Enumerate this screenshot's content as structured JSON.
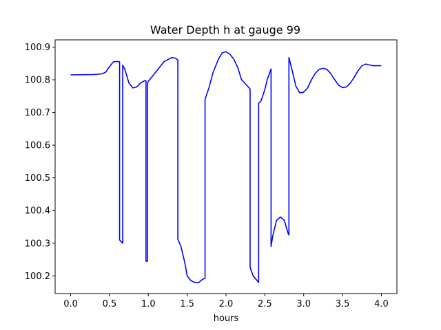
{
  "chart_data": {
    "type": "line",
    "title": "Water Depth h at gauge 99",
    "xlabel": "hours",
    "ylabel": "",
    "xlim": [
      -0.2,
      4.2
    ],
    "ylim": [
      100.146,
      100.922
    ],
    "xticks": [
      0.0,
      0.5,
      1.0,
      1.5,
      2.0,
      2.5,
      3.0,
      3.5,
      4.0
    ],
    "xtick_labels": [
      "0.0",
      "0.5",
      "1.0",
      "1.5",
      "2.0",
      "2.5",
      "3.0",
      "3.5",
      "4.0"
    ],
    "yticks": [
      100.2,
      100.3,
      100.4,
      100.5,
      100.6,
      100.7,
      100.8,
      100.9
    ],
    "ytick_labels": [
      "100.2",
      "100.3",
      "100.4",
      "100.5",
      "100.6",
      "100.7",
      "100.8",
      "100.9"
    ],
    "grid": false,
    "series": [
      {
        "color": "#0000ff",
        "x": [
          0.0,
          0.3,
          0.4,
          0.45,
          0.5,
          0.55,
          0.6,
          0.63,
          0.63,
          0.67,
          0.67,
          0.7,
          0.75,
          0.8,
          0.85,
          0.9,
          0.95,
          0.97,
          0.97,
          0.99,
          0.99,
          1.0,
          1.1,
          1.2,
          1.3,
          1.35,
          1.38,
          1.38,
          1.42,
          1.47,
          1.5,
          1.55,
          1.6,
          1.65,
          1.7,
          1.73,
          1.73,
          1.78,
          1.83,
          1.9,
          1.95,
          2.0,
          2.05,
          2.1,
          2.15,
          2.2,
          2.31,
          2.31,
          2.35,
          2.42,
          2.42,
          2.45,
          2.5,
          2.53,
          2.58,
          2.58,
          2.6,
          2.65,
          2.7,
          2.75,
          2.8,
          2.81,
          2.81,
          2.85,
          2.9,
          2.95,
          3.0,
          3.05,
          3.1,
          3.15,
          3.2,
          3.25,
          3.3,
          3.35,
          3.4,
          3.45,
          3.5,
          3.55,
          3.6,
          3.65,
          3.7,
          3.75,
          3.8,
          3.85,
          3.9,
          3.95,
          4.0
        ],
        "y": [
          100.815,
          100.816,
          100.818,
          100.823,
          100.84,
          100.855,
          100.856,
          100.855,
          100.31,
          100.3,
          100.845,
          100.83,
          100.79,
          100.775,
          100.778,
          100.79,
          100.797,
          100.797,
          100.245,
          100.245,
          100.79,
          100.795,
          100.825,
          100.855,
          100.868,
          100.866,
          100.86,
          100.312,
          100.29,
          100.24,
          100.2,
          100.185,
          100.18,
          100.18,
          100.19,
          100.192,
          100.74,
          100.775,
          100.82,
          100.862,
          100.882,
          100.886,
          100.878,
          100.863,
          100.838,
          100.8,
          100.772,
          100.226,
          100.2,
          100.18,
          100.728,
          100.735,
          100.77,
          100.8,
          100.833,
          100.29,
          100.32,
          100.37,
          100.38,
          100.37,
          100.33,
          100.325,
          100.868,
          100.83,
          100.78,
          100.76,
          100.762,
          100.775,
          100.8,
          100.82,
          100.832,
          100.835,
          100.832,
          100.818,
          100.8,
          100.783,
          100.776,
          100.778,
          100.79,
          100.807,
          100.828,
          100.843,
          100.848,
          100.845,
          100.843,
          100.843,
          100.843
        ]
      }
    ]
  }
}
